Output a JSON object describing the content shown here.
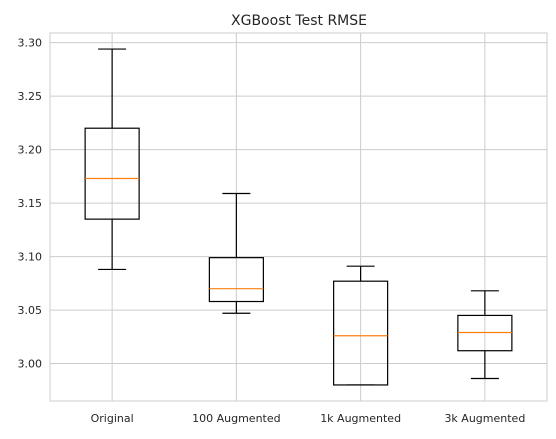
{
  "chart_data": {
    "type": "boxplot",
    "title": "XGBoost Test RMSE",
    "xlabel": "",
    "ylabel": "",
    "categories": [
      "Original",
      "100 Augmented",
      "1k Augmented",
      "3k Augmented"
    ],
    "boxes": [
      {
        "whisker_low": 3.088,
        "q1": 3.135,
        "median": 3.173,
        "q3": 3.22,
        "whisker_high": 3.294
      },
      {
        "whisker_low": 3.047,
        "q1": 3.058,
        "median": 3.07,
        "q3": 3.099,
        "whisker_high": 3.159
      },
      {
        "whisker_low": 2.98,
        "q1": 2.98,
        "median": 3.026,
        "q3": 3.077,
        "whisker_high": 3.091
      },
      {
        "whisker_low": 2.986,
        "q1": 3.012,
        "median": 3.029,
        "q3": 3.045,
        "whisker_high": 3.068
      }
    ],
    "yticks": [
      "3.00",
      "3.05",
      "3.10",
      "3.15",
      "3.20",
      "3.25",
      "3.30"
    ],
    "ylim": [
      2.965,
      3.309
    ],
    "grid": true,
    "colors": {
      "box": "#000000",
      "median": "#ff7f0e",
      "grid": "#cccccc",
      "axes": "#cccccc"
    }
  }
}
